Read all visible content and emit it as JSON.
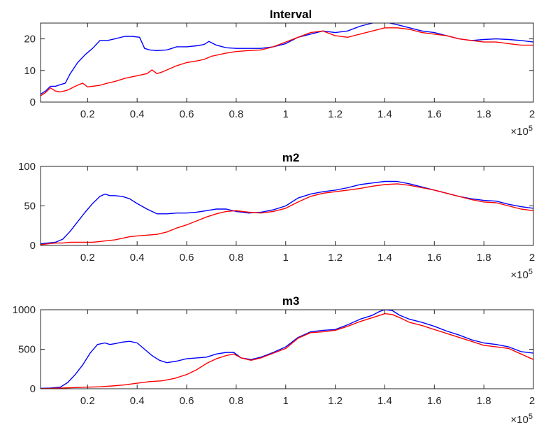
{
  "chart_data": [
    {
      "type": "line",
      "title": "Interval",
      "x_multiplier_label": "×10",
      "x_multiplier_exponent": "5",
      "xlim": [
        0.01,
        2.0
      ],
      "ylim": [
        0,
        25
      ],
      "xticks": [
        0.2,
        0.4,
        0.6,
        0.8,
        1.0,
        1.2,
        1.4,
        1.6,
        1.8,
        2.0
      ],
      "xtick_labels": [
        "0.2",
        "0.4",
        "0.6",
        "0.8",
        "1",
        "1.2",
        "1.4",
        "1.6",
        "1.8",
        "2"
      ],
      "yticks": [
        0,
        10,
        20
      ],
      "ytick_labels": [
        "0",
        "10",
        "20"
      ],
      "grid": false,
      "series": [
        {
          "color": "#0000ff",
          "x": [
            0.01,
            0.03,
            0.05,
            0.07,
            0.09,
            0.11,
            0.13,
            0.16,
            0.19,
            0.22,
            0.25,
            0.28,
            0.31,
            0.35,
            0.38,
            0.41,
            0.43,
            0.45,
            0.48,
            0.52,
            0.56,
            0.6,
            0.64,
            0.67,
            0.69,
            0.72,
            0.76,
            0.8,
            0.85,
            0.9,
            0.95,
            1.0,
            1.05,
            1.1,
            1.15,
            1.2,
            1.25,
            1.3,
            1.35,
            1.38,
            1.4,
            1.42,
            1.45,
            1.5,
            1.55,
            1.6,
            1.65,
            1.7,
            1.75,
            1.8,
            1.85,
            1.9,
            1.95,
            2.0
          ],
          "y": [
            2.5,
            3.5,
            5.0,
            5.0,
            5.5,
            6.0,
            9.0,
            12.5,
            15.0,
            17.0,
            19.5,
            19.5,
            20.0,
            20.8,
            20.8,
            20.5,
            17.0,
            16.5,
            16.3,
            16.5,
            17.5,
            17.5,
            17.8,
            18.2,
            19.2,
            18.0,
            17.2,
            17.0,
            17.0,
            17.0,
            17.5,
            18.5,
            20.5,
            21.5,
            22.5,
            22.0,
            22.5,
            24.0,
            25.0,
            25.5,
            25.5,
            25.0,
            24.5,
            23.5,
            22.5,
            22.0,
            21.0,
            20.0,
            19.5,
            19.8,
            20.0,
            19.8,
            19.5,
            19.0
          ]
        },
        {
          "color": "#ff0000",
          "x": [
            0.01,
            0.03,
            0.05,
            0.07,
            0.09,
            0.12,
            0.15,
            0.18,
            0.2,
            0.22,
            0.25,
            0.28,
            0.31,
            0.35,
            0.38,
            0.41,
            0.44,
            0.46,
            0.48,
            0.5,
            0.53,
            0.56,
            0.6,
            0.64,
            0.67,
            0.7,
            0.73,
            0.76,
            0.8,
            0.85,
            0.9,
            0.95,
            1.0,
            1.05,
            1.1,
            1.15,
            1.2,
            1.25,
            1.3,
            1.35,
            1.4,
            1.45,
            1.5,
            1.55,
            1.6,
            1.65,
            1.7,
            1.75,
            1.8,
            1.85,
            1.9,
            1.95,
            2.0
          ],
          "y": [
            2.0,
            3.0,
            4.5,
            3.5,
            3.2,
            3.8,
            5.0,
            6.0,
            4.8,
            5.0,
            5.3,
            6.0,
            6.5,
            7.5,
            8.0,
            8.5,
            9.0,
            10.2,
            9.0,
            9.5,
            10.5,
            11.5,
            12.5,
            13.0,
            13.5,
            14.5,
            15.0,
            15.5,
            16.0,
            16.3,
            16.5,
            17.5,
            19.0,
            20.5,
            22.0,
            22.5,
            21.0,
            20.5,
            21.5,
            22.5,
            23.5,
            23.5,
            23.0,
            22.0,
            21.5,
            21.0,
            20.0,
            19.5,
            19.0,
            19.0,
            18.5,
            18.0,
            18.0
          ]
        }
      ]
    },
    {
      "type": "line",
      "title": "m2",
      "x_multiplier_label": "×10",
      "x_multiplier_exponent": "5",
      "xlim": [
        0.01,
        2.0
      ],
      "ylim": [
        0,
        100
      ],
      "xticks": [
        0.2,
        0.4,
        0.6,
        0.8,
        1.0,
        1.2,
        1.4,
        1.6,
        1.8,
        2.0
      ],
      "xtick_labels": [
        "0.2",
        "0.4",
        "0.6",
        "0.8",
        "1",
        "1.2",
        "1.4",
        "1.6",
        "1.8",
        "2"
      ],
      "yticks": [
        0,
        50,
        100
      ],
      "ytick_labels": [
        "0",
        "50",
        "100"
      ],
      "grid": false,
      "series": [
        {
          "color": "#0000ff",
          "x": [
            0.01,
            0.04,
            0.07,
            0.1,
            0.13,
            0.16,
            0.19,
            0.22,
            0.25,
            0.27,
            0.29,
            0.31,
            0.34,
            0.37,
            0.4,
            0.44,
            0.48,
            0.52,
            0.56,
            0.6,
            0.64,
            0.68,
            0.72,
            0.76,
            0.8,
            0.85,
            0.9,
            0.95,
            1.0,
            1.05,
            1.1,
            1.15,
            1.2,
            1.25,
            1.3,
            1.35,
            1.4,
            1.45,
            1.5,
            1.55,
            1.6,
            1.65,
            1.7,
            1.75,
            1.8,
            1.85,
            1.9,
            1.95,
            2.0
          ],
          "y": [
            2,
            3,
            4,
            8,
            18,
            30,
            42,
            53,
            62,
            65,
            63,
            63,
            62,
            59,
            53,
            46,
            40,
            40,
            41,
            41,
            42,
            44,
            46,
            46,
            43,
            41,
            42,
            45,
            50,
            60,
            65,
            68,
            70,
            73,
            77,
            79,
            81,
            81,
            78,
            74,
            70,
            66,
            62,
            59,
            57,
            56,
            52,
            49,
            47
          ]
        },
        {
          "color": "#ff0000",
          "x": [
            0.01,
            0.04,
            0.07,
            0.1,
            0.13,
            0.16,
            0.19,
            0.22,
            0.25,
            0.28,
            0.31,
            0.34,
            0.37,
            0.4,
            0.44,
            0.48,
            0.52,
            0.56,
            0.6,
            0.64,
            0.68,
            0.72,
            0.76,
            0.8,
            0.85,
            0.9,
            0.95,
            1.0,
            1.05,
            1.1,
            1.15,
            1.2,
            1.25,
            1.3,
            1.35,
            1.4,
            1.45,
            1.5,
            1.55,
            1.6,
            1.65,
            1.7,
            1.75,
            1.8,
            1.85,
            1.9,
            1.95,
            2.0
          ],
          "y": [
            1,
            2,
            3,
            3,
            4,
            4,
            4,
            4,
            5,
            6,
            7,
            9,
            11,
            12,
            13,
            14,
            17,
            22,
            26,
            31,
            36,
            40,
            43,
            44,
            42,
            41,
            43,
            47,
            55,
            62,
            66,
            68,
            70,
            72,
            75,
            77,
            78,
            76,
            73,
            70,
            66,
            62,
            58,
            55,
            54,
            50,
            46,
            44
          ]
        }
      ]
    },
    {
      "type": "line",
      "title": "m3",
      "x_multiplier_label": "×10",
      "x_multiplier_exponent": "5",
      "xlim": [
        0.01,
        2.0
      ],
      "ylim": [
        0,
        1000
      ],
      "xticks": [
        0.2,
        0.4,
        0.6,
        0.8,
        1.0,
        1.2,
        1.4,
        1.6,
        1.8,
        2.0
      ],
      "xtick_labels": [
        "0.2",
        "0.4",
        "0.6",
        "0.8",
        "1",
        "1.2",
        "1.4",
        "1.6",
        "1.8",
        "2"
      ],
      "yticks": [
        0,
        500,
        1000
      ],
      "ytick_labels": [
        "0",
        "500",
        "1000"
      ],
      "grid": false,
      "series": [
        {
          "color": "#0000ff",
          "x": [
            0.01,
            0.05,
            0.09,
            0.12,
            0.15,
            0.18,
            0.21,
            0.24,
            0.27,
            0.29,
            0.31,
            0.34,
            0.37,
            0.4,
            0.43,
            0.46,
            0.49,
            0.52,
            0.56,
            0.6,
            0.64,
            0.68,
            0.72,
            0.76,
            0.79,
            0.82,
            0.86,
            0.9,
            0.95,
            1.0,
            1.05,
            1.1,
            1.15,
            1.2,
            1.25,
            1.3,
            1.35,
            1.38,
            1.4,
            1.43,
            1.46,
            1.5,
            1.55,
            1.6,
            1.65,
            1.7,
            1.75,
            1.8,
            1.85,
            1.9,
            1.95,
            2.0
          ],
          "y": [
            5,
            10,
            20,
            80,
            180,
            300,
            450,
            560,
            580,
            560,
            570,
            590,
            600,
            580,
            500,
            420,
            360,
            330,
            350,
            380,
            390,
            400,
            440,
            460,
            460,
            390,
            370,
            400,
            460,
            530,
            650,
            720,
            740,
            750,
            810,
            880,
            930,
            980,
            1000,
            990,
            930,
            880,
            840,
            790,
            730,
            680,
            620,
            580,
            560,
            530,
            470,
            450
          ]
        },
        {
          "color": "#ff0000",
          "x": [
            0.01,
            0.05,
            0.1,
            0.15,
            0.2,
            0.25,
            0.3,
            0.35,
            0.4,
            0.45,
            0.5,
            0.55,
            0.6,
            0.64,
            0.68,
            0.72,
            0.76,
            0.79,
            0.82,
            0.86,
            0.9,
            0.95,
            1.0,
            1.05,
            1.1,
            1.15,
            1.2,
            1.25,
            1.3,
            1.35,
            1.38,
            1.4,
            1.43,
            1.46,
            1.5,
            1.55,
            1.6,
            1.65,
            1.7,
            1.75,
            1.8,
            1.85,
            1.9,
            1.95,
            2.0
          ],
          "y": [
            0,
            5,
            10,
            15,
            20,
            25,
            35,
            50,
            70,
            90,
            100,
            130,
            180,
            240,
            320,
            380,
            420,
            440,
            390,
            360,
            390,
            450,
            510,
            640,
            710,
            720,
            740,
            790,
            850,
            900,
            930,
            950,
            940,
            900,
            840,
            800,
            750,
            700,
            650,
            600,
            550,
            530,
            510,
            440,
            370
          ]
        }
      ]
    }
  ]
}
